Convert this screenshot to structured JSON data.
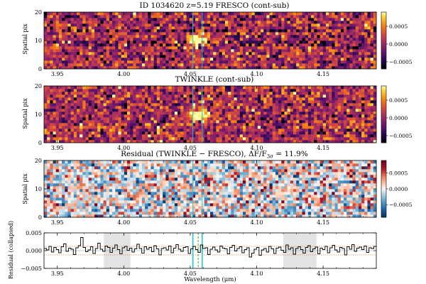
{
  "chart_data": [
    {
      "type": "heatmap",
      "title": "ID 1034620  z=5.19   FRESCO (cont-sub)",
      "ylabel": "Spatial pix",
      "xlim": [
        3.94,
        4.19
      ],
      "ylim": [
        0,
        20
      ],
      "x_ticks": [
        "3.95",
        "4.00",
        "4.05",
        "4.10",
        "4.15"
      ],
      "y_ticks": [
        "0",
        "10",
        "20"
      ],
      "colormap": "inferno",
      "colorbar_ticks": [
        "0.0005",
        "0.0000",
        "−0.0005"
      ],
      "colorbar_range": [
        -0.0007,
        0.0009
      ],
      "emission_center": {
        "x": 4.056,
        "y": 10
      },
      "cyan_lines": [
        4.052,
        4.059
      ]
    },
    {
      "type": "heatmap",
      "title": "TWINKLE (cont-sub)",
      "ylabel": "Spatial pix",
      "xlim": [
        3.94,
        4.19
      ],
      "ylim": [
        0,
        20
      ],
      "x_ticks": [
        "3.95",
        "4.00",
        "4.05",
        "4.10",
        "4.15"
      ],
      "y_ticks": [
        "0",
        "10",
        "20"
      ],
      "colormap": "inferno",
      "colorbar_ticks": [
        "0.0005",
        "0.0000",
        "−0.0005"
      ],
      "colorbar_range": [
        -0.0007,
        0.0009
      ],
      "emission_center": {
        "x": 4.056,
        "y": 10
      },
      "cyan_lines": [
        4.052,
        4.059
      ]
    },
    {
      "type": "heatmap",
      "title": "Residual (TWINKLE − FRESCO), ΔF/F",
      "title_subscript": "3σ",
      "title_suffix": " = 11.9%",
      "ylabel": "Spatial pix",
      "xlim": [
        3.94,
        4.19
      ],
      "ylim": [
        0,
        20
      ],
      "x_ticks": [
        "3.95",
        "4.00",
        "4.05",
        "4.10",
        "4.15"
      ],
      "y_ticks": [
        "0",
        "10",
        "20"
      ],
      "colormap": "RdBu_r",
      "colorbar_ticks": [
        "0.0005",
        "0.0000",
        "−0.0005"
      ],
      "colorbar_range": [
        -0.0009,
        0.0009
      ],
      "cyan_lines": [
        4.052,
        4.059
      ]
    },
    {
      "type": "line",
      "xlabel": "Wavelength (μm)",
      "ylabel": "Residual (collapsed)",
      "xlim": [
        3.94,
        4.19
      ],
      "ylim": [
        -0.005,
        0.005
      ],
      "x_ticks": [
        "3.95",
        "4.00",
        "4.05",
        "4.10",
        "4.15"
      ],
      "y_ticks": [
        "0.005",
        "0.000",
        "−0.005"
      ],
      "shaded_regions": [
        [
          3.985,
          4.005
        ],
        [
          4.12,
          4.145
        ]
      ],
      "cyan_lines": [
        4.052,
        4.059
      ],
      "green_dashed_line": 4.056,
      "orange_dotted_levels": [
        0.0012,
        -0.0012
      ],
      "step_profile": [
        0.0006,
        0.0002,
        0.0012,
        -0.0004,
        0.0009,
        0.0003,
        -0.0006,
        0.0011,
        0.0019,
        -0.0002,
        0.0007,
        0.0004,
        -0.0011,
        0.0008,
        0.0014,
        0.0037,
        0.0009,
        -0.0003,
        0.0002,
        0.0011,
        -0.0008,
        0.0006,
        0.0021,
        0.0004,
        -0.0002,
        0.0013,
        0.0009,
        -0.0005,
        0.0007,
        0.0016,
        0.0003,
        -0.0009,
        0.0008,
        0.0012,
        0.0001,
        0.0007,
        -0.0004,
        0.0005,
        0.0018,
        0.0006,
        -0.0007,
        0.0011,
        0.0004,
        0.0009,
        -0.0003,
        0.0014,
        0.0005,
        -0.0012,
        0.0006,
        0.0008,
        0.0002,
        0.0013,
        -0.0006,
        0.0007,
        0.0017,
        0.0004,
        -0.0002,
        0.0009,
        0.0011,
        -0.0008,
        0.0005,
        0.0012,
        0.0003,
        -0.0005,
        0.0016,
        0.0006,
        0.0008,
        -0.0011,
        0.0004,
        0.001,
        0.0002,
        -0.0004,
        0.0013,
        0.0007,
        0.0005,
        -0.0009,
        0.0009,
        0.0015,
        -0.0001,
        0.0006,
        0.0011,
        -0.0006,
        0.0003,
        0.0008,
        -0.0018,
        -0.0007,
        0.0004,
        0.0009,
        -0.0013,
        0.0002,
        0.0006,
        -0.0004,
        0.0012,
        0.0005,
        -0.0008,
        0.0007,
        0.001,
        0.0001,
        -0.0005,
        0.0016,
        0.0004,
        0.0008,
        -0.001,
        0.0006,
        0.0011,
        0.0003,
        -0.0007,
        0.0009,
        0.0014,
        -0.0003,
        0.0005,
        0.001,
        -0.0009,
        0.0007,
        0.0003,
        0.0012,
        -0.0006,
        0.0008,
        0.0015,
        0.0002,
        -0.0004,
        0.0009,
        0.0006,
        -0.0012,
        0.0011,
        0.0004,
        0.0017,
        -0.0002,
        0.0007,
        0.001,
        0.0003,
        0.0013,
        -0.0005,
        0.0008,
        0.0006,
        0.0012
      ]
    }
  ]
}
